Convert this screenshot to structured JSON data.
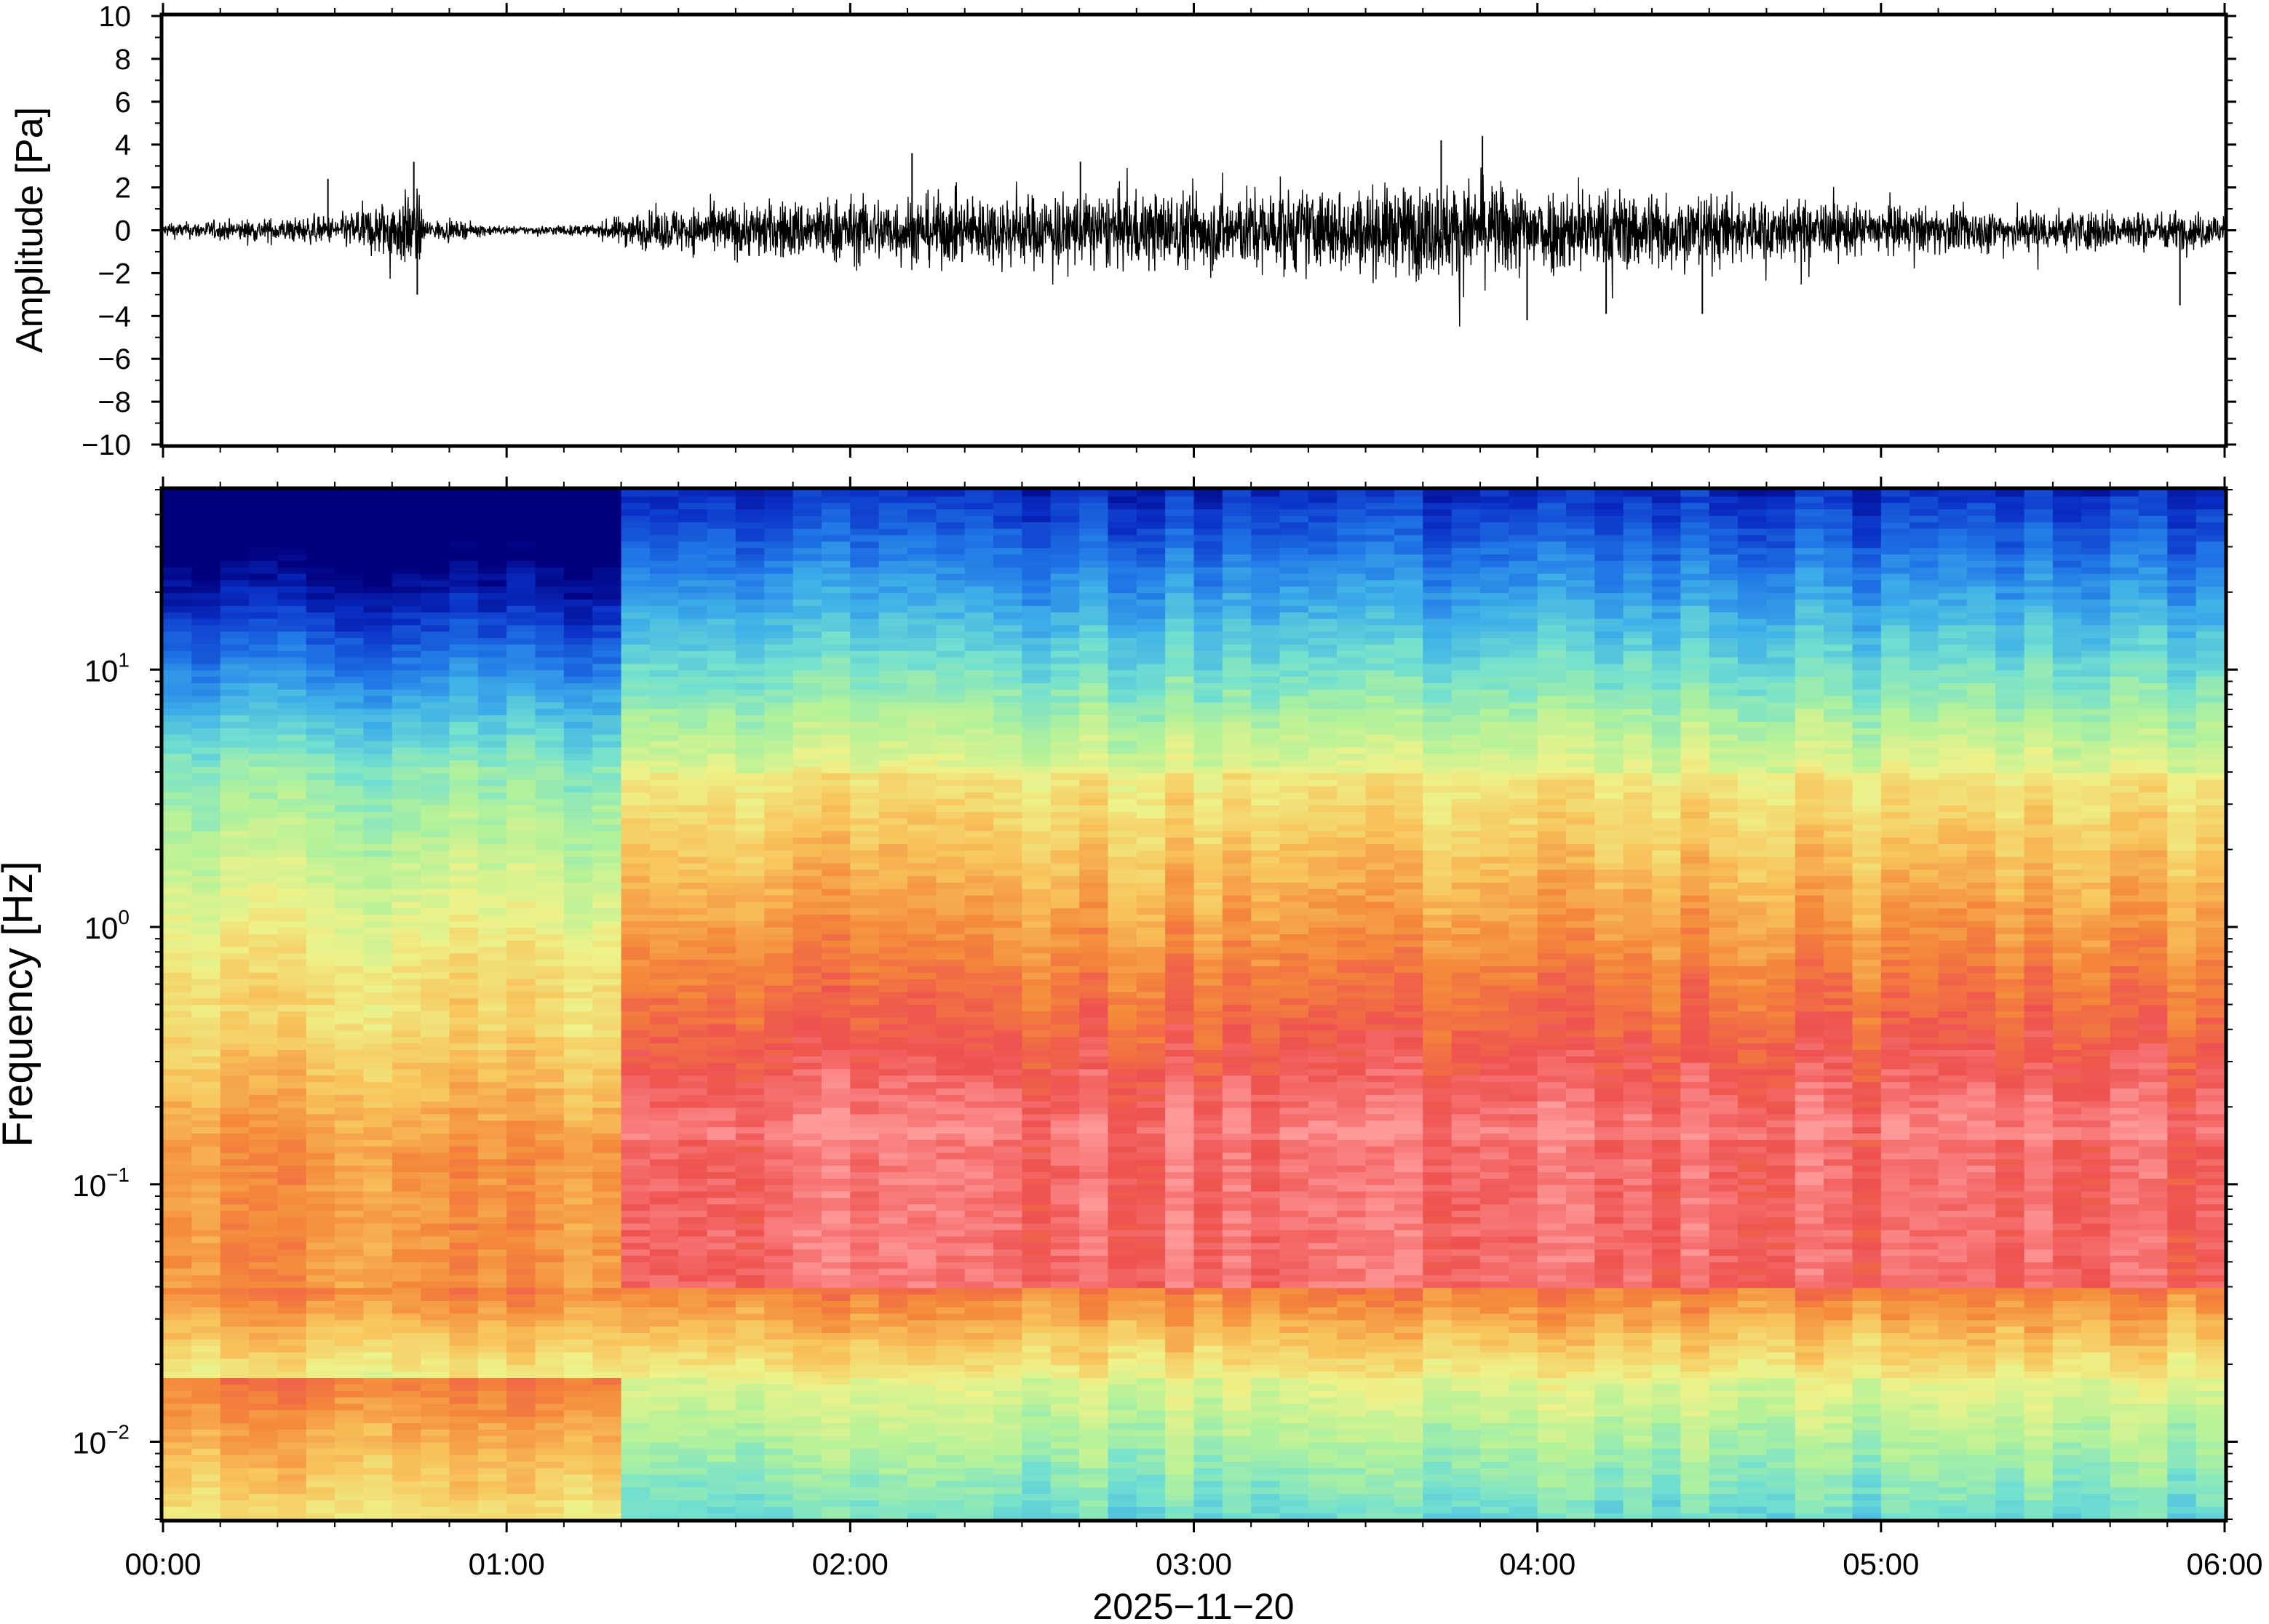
{
  "chart_data": [
    {
      "type": "line",
      "panel": "waveform",
      "ylabel": "Amplitude [Pa]",
      "ylim": [
        -10,
        10
      ],
      "yticks": [
        -10,
        -8,
        -6,
        -4,
        -2,
        0,
        2,
        4,
        6,
        8,
        10
      ],
      "ytick_labels": [
        "−10",
        "−8",
        "−6",
        "−4",
        "−2",
        "0",
        "2",
        "4",
        "6",
        "8",
        "10"
      ],
      "xlim": [
        "00:00",
        "06:00"
      ],
      "series_color": "#000000",
      "envelope": {
        "t_hours": [
          0.0,
          0.25,
          0.5,
          0.74,
          0.76,
          1.0,
          1.25,
          1.35,
          1.6,
          2.0,
          2.5,
          3.0,
          3.5,
          3.8,
          4.0,
          4.5,
          5.0,
          5.5,
          6.0
        ],
        "amplitude_pa": [
          0.5,
          0.8,
          1.0,
          2.9,
          0.8,
          0.3,
          0.4,
          1.2,
          1.8,
          2.4,
          2.6,
          2.8,
          3.0,
          3.5,
          3.2,
          2.6,
          1.7,
          1.5,
          1.3
        ]
      },
      "peaks": [
        {
          "t_hours": 0.48,
          "amplitude_pa": 2.4
        },
        {
          "t_hours": 0.73,
          "amplitude_pa": 3.2
        },
        {
          "t_hours": 0.74,
          "amplitude_pa": -3.0
        },
        {
          "t_hours": 2.18,
          "amplitude_pa": 3.6
        },
        {
          "t_hours": 2.67,
          "amplitude_pa": 3.2
        },
        {
          "t_hours": 3.72,
          "amplitude_pa": 4.2
        },
        {
          "t_hours": 3.84,
          "amplitude_pa": 4.4
        },
        {
          "t_hours": 3.97,
          "amplitude_pa": -4.2
        },
        {
          "t_hours": 4.2,
          "amplitude_pa": -3.9
        },
        {
          "t_hours": 4.48,
          "amplitude_pa": -3.9
        },
        {
          "t_hours": 5.87,
          "amplitude_pa": -3.5
        }
      ]
    },
    {
      "type": "heatmap",
      "panel": "spectrogram",
      "ylabel": "Frequency [Hz]",
      "xlabel": "2025−11−20",
      "y_scale": "log",
      "ylim": [
        0.005,
        50
      ],
      "ytick_labels": [
        {
          "base": "10",
          "exp": "−2",
          "value": 0.01
        },
        {
          "base": "10",
          "exp": "−1",
          "value": 0.1
        },
        {
          "base": "10",
          "exp": "0",
          "value": 1
        },
        {
          "base": "10",
          "exp": "1",
          "value": 10
        }
      ],
      "x_tick_labels": [
        "00:00",
        "01:00",
        "02:00",
        "03:00",
        "04:00",
        "05:00",
        "06:00"
      ],
      "xlim": [
        "00:00",
        "06:00"
      ],
      "colormap": [
        "#00007e",
        "#0a2fc6",
        "#1f74e6",
        "#3fb0e8",
        "#72e0d0",
        "#b4f29a",
        "#eef28a",
        "#f8c65e",
        "#f4883a",
        "#ee5250",
        "#ff9a9a"
      ],
      "quiet_period_hours": [
        0.0,
        1.35
      ],
      "strongest_band_hz": [
        0.04,
        0.15
      ]
    }
  ]
}
